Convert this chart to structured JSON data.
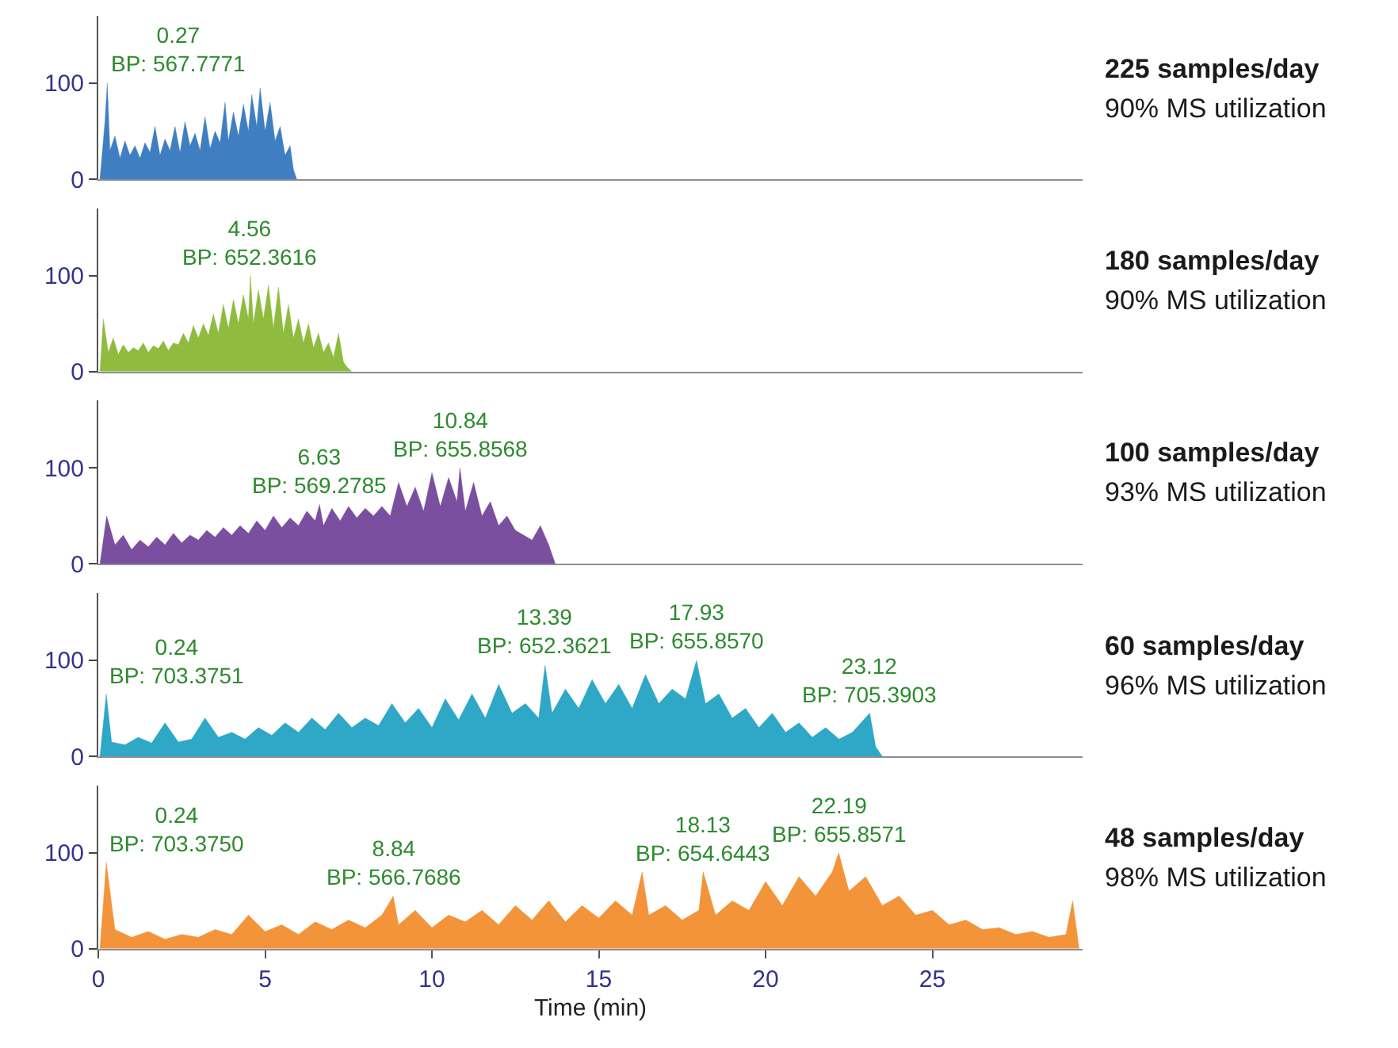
{
  "chart_data": [
    {
      "type": "area",
      "color": "#3f7fc1",
      "xlim": [
        0,
        29.5
      ],
      "ylim": [
        0,
        170
      ],
      "yticks": [
        0,
        100
      ],
      "tick_labels": "y",
      "x": [
        0.05,
        0.2,
        0.27,
        0.35,
        0.5,
        0.65,
        0.8,
        0.95,
        1.1,
        1.25,
        1.4,
        1.55,
        1.7,
        1.85,
        2.0,
        2.15,
        2.3,
        2.45,
        2.6,
        2.75,
        2.9,
        3.05,
        3.2,
        3.35,
        3.5,
        3.65,
        3.8,
        3.9,
        4.05,
        4.2,
        4.35,
        4.5,
        4.6,
        4.75,
        4.85,
        5.0,
        5.15,
        5.3,
        5.45,
        5.6,
        5.75,
        5.85,
        5.95
      ],
      "values": [
        0,
        60,
        100,
        30,
        45,
        22,
        40,
        25,
        35,
        22,
        38,
        28,
        55,
        25,
        42,
        30,
        55,
        28,
        60,
        35,
        48,
        30,
        65,
        32,
        50,
        38,
        80,
        40,
        70,
        45,
        78,
        50,
        88,
        55,
        95,
        50,
        80,
        40,
        55,
        25,
        35,
        10,
        0
      ],
      "annotations": [
        {
          "text": "0.27\nBP: 567.7771",
          "x": 0.27,
          "y": 100
        },
        "225 samples/day",
        "90% MS utilization"
      ]
    },
    {
      "type": "area",
      "color": "#8fbc3f",
      "xlim": [
        0,
        29.5
      ],
      "ylim": [
        0,
        170
      ],
      "yticks": [
        0,
        100
      ],
      "tick_labels": "y",
      "x": [
        0.05,
        0.15,
        0.3,
        0.45,
        0.6,
        0.75,
        0.9,
        1.05,
        1.2,
        1.35,
        1.5,
        1.65,
        1.8,
        1.95,
        2.1,
        2.25,
        2.4,
        2.55,
        2.7,
        2.85,
        3.0,
        3.15,
        3.3,
        3.45,
        3.6,
        3.75,
        3.9,
        4.05,
        4.2,
        4.35,
        4.5,
        4.56,
        4.65,
        4.8,
        4.95,
        5.1,
        5.25,
        5.4,
        5.55,
        5.7,
        5.85,
        6.0,
        6.15,
        6.3,
        6.45,
        6.6,
        6.75,
        6.9,
        7.05,
        7.2,
        7.35,
        7.45,
        7.6
      ],
      "values": [
        0,
        55,
        20,
        35,
        18,
        28,
        20,
        25,
        22,
        30,
        20,
        27,
        24,
        32,
        22,
        30,
        28,
        40,
        30,
        48,
        35,
        50,
        38,
        60,
        40,
        70,
        45,
        75,
        50,
        80,
        55,
        100,
        50,
        85,
        55,
        90,
        45,
        88,
        40,
        70,
        35,
        55,
        30,
        50,
        25,
        40,
        20,
        30,
        15,
        40,
        10,
        5,
        0
      ],
      "annotations": [
        {
          "text": "4.56\nBP: 652.3616",
          "x": 4.56,
          "y": 100
        },
        "180 samples/day",
        "90% MS utilization"
      ]
    },
    {
      "type": "area",
      "color": "#7b4f9f",
      "xlim": [
        0,
        29.5
      ],
      "ylim": [
        0,
        170
      ],
      "yticks": [
        0,
        100
      ],
      "tick_labels": "y",
      "x": [
        0.05,
        0.25,
        0.5,
        0.75,
        1.0,
        1.25,
        1.5,
        1.75,
        2.0,
        2.25,
        2.5,
        2.75,
        3.0,
        3.25,
        3.5,
        3.75,
        4.0,
        4.25,
        4.5,
        4.75,
        5.0,
        5.25,
        5.5,
        5.75,
        6.0,
        6.25,
        6.5,
        6.63,
        6.75,
        7.0,
        7.25,
        7.5,
        7.75,
        8.0,
        8.25,
        8.5,
        8.75,
        9.0,
        9.25,
        9.5,
        9.75,
        10.0,
        10.25,
        10.5,
        10.75,
        10.84,
        11.0,
        11.25,
        11.5,
        11.75,
        12.0,
        12.25,
        12.5,
        12.75,
        13.0,
        13.25,
        13.5,
        13.7
      ],
      "values": [
        0,
        50,
        20,
        30,
        15,
        25,
        18,
        28,
        20,
        32,
        22,
        30,
        25,
        35,
        28,
        38,
        30,
        40,
        32,
        45,
        35,
        50,
        38,
        48,
        40,
        55,
        45,
        62,
        40,
        58,
        45,
        60,
        48,
        58,
        50,
        60,
        50,
        85,
        60,
        80,
        55,
        95,
        60,
        90,
        65,
        100,
        55,
        85,
        50,
        65,
        40,
        50,
        35,
        30,
        25,
        40,
        20,
        0
      ],
      "annotations": [
        {
          "text": "6.63\nBP: 569.2785",
          "x": 6.63,
          "y": 62
        },
        {
          "text": "10.84\nBP: 655.8568",
          "x": 10.84,
          "y": 100
        },
        "100 samples/day",
        "93% MS utilization"
      ]
    },
    {
      "type": "area",
      "color": "#2fa7c6",
      "xlim": [
        0,
        29.5
      ],
      "ylim": [
        0,
        170
      ],
      "yticks": [
        0,
        100
      ],
      "tick_labels": "y",
      "x": [
        0.05,
        0.24,
        0.4,
        0.8,
        1.2,
        1.6,
        2.0,
        2.4,
        2.8,
        3.2,
        3.6,
        4.0,
        4.4,
        4.8,
        5.2,
        5.6,
        6.0,
        6.4,
        6.8,
        7.2,
        7.6,
        8.0,
        8.4,
        8.8,
        9.2,
        9.6,
        10.0,
        10.4,
        10.8,
        11.2,
        11.6,
        12.0,
        12.4,
        12.8,
        13.2,
        13.39,
        13.6,
        14.0,
        14.4,
        14.8,
        15.2,
        15.6,
        16.0,
        16.4,
        16.8,
        17.2,
        17.6,
        17.93,
        18.2,
        18.6,
        19.0,
        19.4,
        19.8,
        20.2,
        20.6,
        21.0,
        21.4,
        21.8,
        22.2,
        22.6,
        23.12,
        23.3,
        23.5
      ],
      "values": [
        0,
        65,
        15,
        12,
        20,
        14,
        35,
        15,
        18,
        40,
        20,
        25,
        18,
        30,
        22,
        35,
        25,
        40,
        28,
        45,
        30,
        40,
        32,
        55,
        35,
        50,
        30,
        60,
        38,
        65,
        40,
        75,
        45,
        55,
        40,
        95,
        45,
        70,
        50,
        80,
        55,
        75,
        50,
        85,
        55,
        70,
        60,
        100,
        55,
        65,
        40,
        50,
        30,
        45,
        25,
        35,
        20,
        30,
        18,
        25,
        45,
        10,
        0
      ],
      "annotations": [
        {
          "text": "0.24\nBP: 703.3751",
          "x": 0.24,
          "y": 65
        },
        {
          "text": "13.39\nBP: 652.3621",
          "x": 13.39,
          "y": 95
        },
        {
          "text": "17.93\nBP: 655.8570",
          "x": 17.93,
          "y": 100
        },
        {
          "text": "23.12\nBP: 705.3903",
          "x": 23.12,
          "y": 45
        },
        "60 samples/day",
        "96% MS utilization"
      ]
    },
    {
      "type": "area",
      "color": "#f3943a",
      "xlim": [
        0,
        29.5
      ],
      "ylim": [
        0,
        170
      ],
      "yticks": [
        0,
        100
      ],
      "xticks": [
        0,
        5,
        10,
        15,
        20,
        25
      ],
      "xlabel": "Time (min)",
      "x": [
        0.05,
        0.24,
        0.5,
        1.0,
        1.5,
        2.0,
        2.5,
        3.0,
        3.5,
        4.0,
        4.5,
        5.0,
        5.5,
        6.0,
        6.5,
        7.0,
        7.5,
        8.0,
        8.5,
        8.84,
        9.0,
        9.5,
        10.0,
        10.5,
        11.0,
        11.5,
        12.0,
        12.5,
        13.0,
        13.5,
        14.0,
        14.5,
        15.0,
        15.5,
        16.0,
        16.3,
        16.5,
        17.0,
        17.5,
        18.0,
        18.13,
        18.5,
        19.0,
        19.5,
        20.0,
        20.5,
        21.0,
        21.5,
        22.0,
        22.19,
        22.5,
        23.0,
        23.5,
        24.0,
        24.5,
        25.0,
        25.5,
        26.0,
        26.5,
        27.0,
        27.5,
        28.0,
        28.5,
        29.0,
        29.2,
        29.4
      ],
      "values": [
        0,
        90,
        20,
        12,
        18,
        10,
        15,
        12,
        20,
        15,
        35,
        18,
        25,
        15,
        28,
        20,
        30,
        22,
        35,
        55,
        25,
        40,
        22,
        35,
        28,
        40,
        25,
        45,
        30,
        50,
        28,
        45,
        32,
        50,
        35,
        80,
        35,
        45,
        30,
        40,
        80,
        35,
        50,
        40,
        70,
        45,
        75,
        55,
        80,
        100,
        60,
        75,
        45,
        55,
        35,
        40,
        25,
        30,
        20,
        22,
        15,
        18,
        12,
        15,
        50,
        0
      ],
      "annotations": [
        {
          "text": "0.24\nBP: 703.3750",
          "x": 0.24,
          "y": 90
        },
        {
          "text": "8.84\nBP: 566.7686",
          "x": 8.84,
          "y": 55
        },
        {
          "text": "18.13\nBP: 654.6443",
          "x": 18.13,
          "y": 80
        },
        {
          "text": "22.19\nBP: 655.8571",
          "x": 22.19,
          "y": 100
        },
        "48 samples/day",
        "98% MS utilization"
      ]
    }
  ]
}
